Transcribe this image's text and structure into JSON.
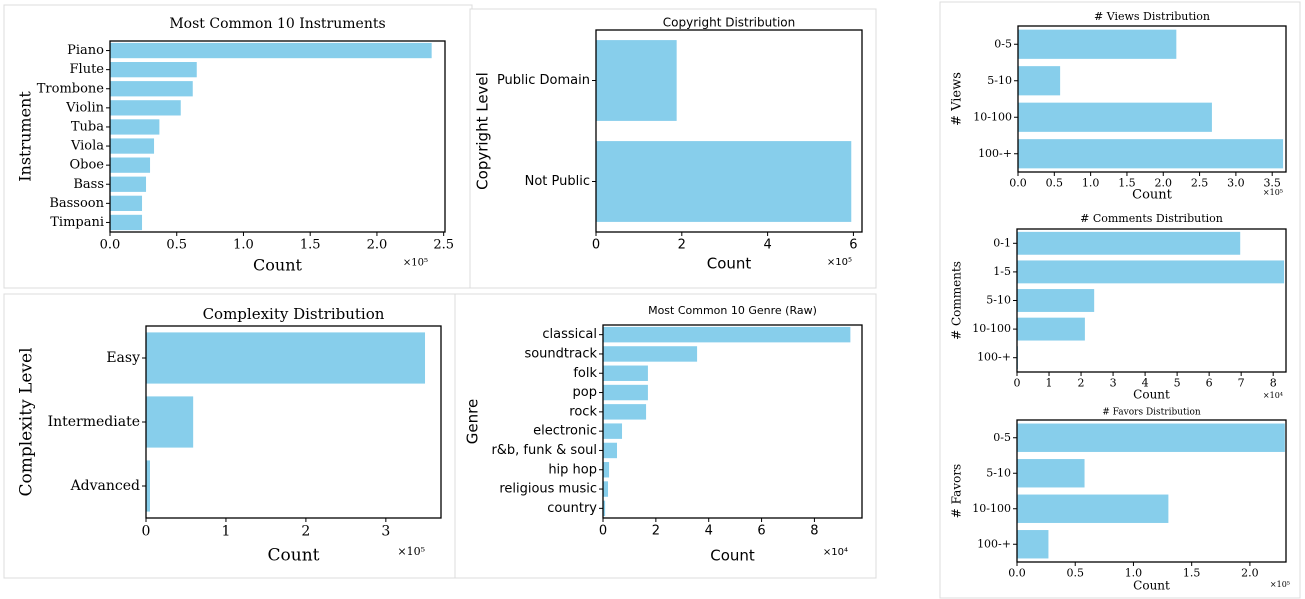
{
  "chart_data": [
    {
      "type": "bar",
      "orientation": "horizontal",
      "title": "Most Common 10 Instruments",
      "xlabel": "Count",
      "ylabel": "Instrument",
      "offset_label": "×10⁵",
      "categories": [
        "Piano",
        "Flute",
        "Trombone",
        "Violin",
        "Tuba",
        "Viola",
        "Oboe",
        "Bass",
        "Bassoon",
        "Timpani"
      ],
      "values": [
        2.41,
        0.65,
        0.62,
        0.53,
        0.37,
        0.33,
        0.3,
        0.27,
        0.24,
        0.24
      ],
      "color": "#87ceeb",
      "xlim": [
        0,
        2.51
      ],
      "xticks": [
        {
          "value": 0,
          "label": "0.0"
        },
        0.5,
        {
          "value": 1,
          "label": "1.0"
        },
        1.5,
        {
          "value": 2,
          "label": "2.0"
        },
        2.5
      ]
    },
    {
      "type": "bar",
      "orientation": "horizontal",
      "title": "Copyright Distribution",
      "xlabel": "Count",
      "ylabel": "Copyright Level",
      "offset_label": "×10⁵",
      "categories": [
        "Public Domain",
        "Not Public"
      ],
      "values": [
        1.88,
        5.95
      ],
      "color": "#87ceeb",
      "xlim": [
        0,
        6.2
      ],
      "xticks": [
        0,
        2,
        4,
        6
      ]
    },
    {
      "type": "bar",
      "orientation": "horizontal",
      "title": "Complexity Distribution",
      "xlabel": "Count",
      "ylabel": "Complexity Level",
      "offset_label": "×10⁵",
      "categories": [
        "Easy",
        "Intermediate",
        "Advanced"
      ],
      "values": [
        3.49,
        0.59,
        0.05
      ],
      "color": "#87ceeb",
      "xlim": [
        0,
        3.69
      ],
      "xticks": [
        0,
        1,
        2,
        3
      ]
    },
    {
      "type": "bar",
      "orientation": "horizontal",
      "title": "Most Common 10 Genre (Raw)",
      "xlabel": "Count",
      "ylabel": "Genre",
      "offset_label": "×10⁴",
      "categories": [
        "classical",
        "soundtrack",
        "folk",
        "pop",
        "rock",
        "electronic",
        "r&b, funk & soul",
        "hip hop",
        "religious music",
        "country"
      ],
      "values": [
        9.36,
        3.56,
        1.7,
        1.7,
        1.63,
        0.72,
        0.53,
        0.23,
        0.19,
        0.08
      ],
      "color": "#87ceeb",
      "xlim": [
        0,
        9.8
      ],
      "xticks": [
        0,
        2,
        4,
        6,
        8
      ]
    },
    {
      "type": "bar",
      "orientation": "horizontal",
      "title": "# Views Distribution",
      "xlabel": "Count",
      "ylabel": "# Views",
      "offset_label": "×10⁵",
      "categories": [
        "0-5",
        "5-10",
        "10-100",
        "100-+"
      ],
      "values": [
        2.18,
        0.58,
        2.67,
        3.65
      ],
      "color": "#87ceeb",
      "xlim": [
        0,
        3.69
      ],
      "xticks": [
        {
          "value": 0,
          "label": "0.0"
        },
        0.5,
        {
          "value": 1,
          "label": "1.0"
        },
        1.5,
        {
          "value": 2,
          "label": "2.0"
        },
        2.5,
        {
          "value": 3,
          "label": "3.0"
        },
        3.5
      ]
    },
    {
      "type": "bar",
      "orientation": "horizontal",
      "title": "# Comments Distribution",
      "xlabel": "Count",
      "ylabel": "# Comments",
      "offset_label": "×10⁴",
      "categories": [
        "0-1",
        "1-5",
        "5-10",
        "10-100",
        "100-+"
      ],
      "values": [
        6.97,
        8.34,
        2.41,
        2.12,
        0.03
      ],
      "color": "#87ceeb",
      "xlim": [
        0,
        8.4
      ],
      "xticks": [
        0,
        1,
        2,
        3,
        4,
        5,
        6,
        7,
        8
      ]
    },
    {
      "type": "bar",
      "orientation": "horizontal",
      "title": "# Favors Distribution",
      "xlabel": "Count",
      "ylabel": "# Favors",
      "offset_label": "×10⁵",
      "categories": [
        "0-5",
        "5-10",
        "10-100",
        "100-+"
      ],
      "values": [
        2.3,
        0.58,
        1.3,
        0.27
      ],
      "color": "#87ceeb",
      "xlim": [
        0,
        2.31
      ],
      "xticks": [
        {
          "value": 0,
          "label": "0.0"
        },
        0.5,
        {
          "value": 1,
          "label": "1.0"
        },
        1.5,
        {
          "value": 2,
          "label": "2.0"
        }
      ]
    }
  ]
}
